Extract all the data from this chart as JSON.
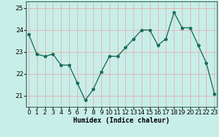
{
  "x": [
    0,
    1,
    2,
    3,
    4,
    5,
    6,
    7,
    8,
    9,
    10,
    11,
    12,
    13,
    14,
    15,
    16,
    17,
    18,
    19,
    20,
    21,
    22,
    23
  ],
  "y": [
    23.8,
    22.9,
    22.8,
    22.9,
    22.4,
    22.4,
    21.6,
    20.8,
    21.3,
    22.1,
    22.8,
    22.8,
    23.2,
    23.6,
    24.0,
    24.0,
    23.3,
    23.6,
    24.8,
    24.1,
    24.1,
    23.3,
    22.5,
    21.1
  ],
  "line_color": "#1a6b5a",
  "marker": "*",
  "bg_color": "#c8eee8",
  "grid_color": "#e8a0a0",
  "xlabel": "Humidex (Indice chaleur)",
  "ylim": [
    20.5,
    25.3
  ],
  "yticks": [
    21,
    22,
    23,
    24,
    25
  ],
  "xlabel_fontsize": 7,
  "tick_fontsize": 6.5,
  "linewidth": 1.0,
  "markersize": 3.5
}
